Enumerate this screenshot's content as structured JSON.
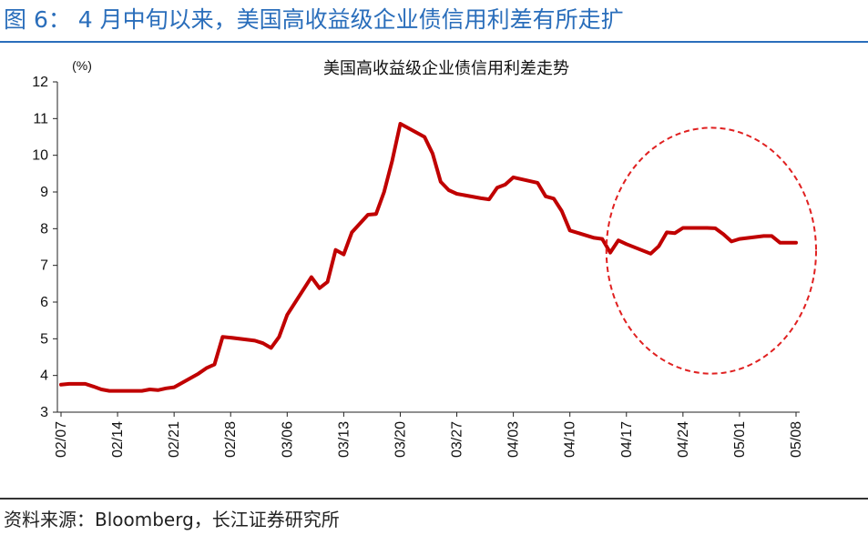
{
  "figure": {
    "title": "图 6：   4 月中旬以来，美国高收益级企业债信用利差有所走扩",
    "source": "资料来源：Bloomberg，长江证券研究所"
  },
  "chart_data": {
    "type": "line",
    "title": "美国高收益级企业债信用利差走势",
    "ylabel": "(%)",
    "xlabel": "",
    "ylim": [
      3,
      12
    ],
    "yticks": [
      3,
      4,
      5,
      6,
      7,
      8,
      9,
      10,
      11,
      12
    ],
    "xticks": [
      "02/07",
      "02/14",
      "02/21",
      "02/28",
      "03/06",
      "03/13",
      "03/20",
      "03/27",
      "04/03",
      "04/10",
      "04/17",
      "04/24",
      "05/01",
      "05/08"
    ],
    "grid": false,
    "line_color": "#c00000",
    "highlight_color": "#e02020",
    "series": [
      {
        "x": [
          "02/07",
          "02/08",
          "02/10",
          "02/11",
          "02/12",
          "02/13",
          "02/14",
          "02/17",
          "02/18",
          "02/19",
          "02/20",
          "02/21",
          "02/24",
          "02/25",
          "02/26",
          "02/27",
          "02/28",
          "03/02",
          "03/03",
          "03/04",
          "03/05",
          "03/06",
          "03/09",
          "03/10",
          "03/11",
          "03/12",
          "03/13",
          "03/14",
          "03/16",
          "03/17",
          "03/18",
          "03/19",
          "03/20",
          "03/23",
          "03/24",
          "03/25",
          "03/26",
          "03/27",
          "03/30",
          "03/31",
          "04/01",
          "04/02",
          "04/03",
          "04/06",
          "04/07",
          "04/08",
          "04/09",
          "04/10",
          "04/13",
          "04/14",
          "04/15",
          "04/16",
          "04/17",
          "04/20",
          "04/21",
          "04/22",
          "04/23",
          "04/24",
          "04/27",
          "04/28",
          "04/29",
          "04/30",
          "05/01",
          "05/04",
          "05/05",
          "05/06",
          "05/07",
          "05/08"
        ],
        "values": [
          3.75,
          3.77,
          3.77,
          3.7,
          3.62,
          3.58,
          3.58,
          3.58,
          3.62,
          3.6,
          3.65,
          3.68,
          4.05,
          4.2,
          4.3,
          5.05,
          5.03,
          4.95,
          4.88,
          4.75,
          5.05,
          5.65,
          6.68,
          6.38,
          6.55,
          7.42,
          7.3,
          7.9,
          8.38,
          8.4,
          9.0,
          9.85,
          10.86,
          10.5,
          10.05,
          9.28,
          9.05,
          8.95,
          8.83,
          8.8,
          9.12,
          9.2,
          9.4,
          9.25,
          8.88,
          8.82,
          8.48,
          7.95,
          7.75,
          7.72,
          7.35,
          7.68,
          7.58,
          7.32,
          7.52,
          7.9,
          7.88,
          8.02,
          8.02,
          8.01,
          7.85,
          7.65,
          7.72,
          7.8,
          7.8,
          7.62,
          7.62,
          7.62
        ]
      }
    ],
    "annotations": [
      {
        "type": "ellipse",
        "style": "dashed",
        "around_x": [
          "04/17",
          "05/08"
        ],
        "around_y": [
          4.05,
          10.75
        ]
      }
    ]
  }
}
